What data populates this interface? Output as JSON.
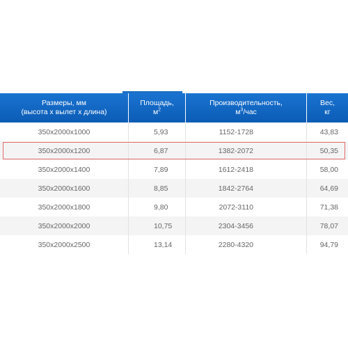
{
  "table": {
    "headers": [
      {
        "line1": "Размеры, мм",
        "line2": "(высота х вылет х длина)"
      },
      {
        "line1": "Площадь,",
        "line2": "м",
        "sup": "2"
      },
      {
        "line1": "Производительность,",
        "line2_pre": "м",
        "sup": "3",
        "line2_post": "/час"
      },
      {
        "line1": "Вес,",
        "line2": "кг"
      }
    ],
    "rows": [
      [
        "350x2000x1000",
        "5,93",
        "1152-1728",
        "43,83"
      ],
      [
        "350x2000x1200",
        "6,87",
        "1382-2072",
        "50,35"
      ],
      [
        "350x2000x1400",
        "7,89",
        "1612-2418",
        "58,00"
      ],
      [
        "350x2000x1600",
        "8,85",
        "1842-2764",
        "64,69"
      ],
      [
        "350x2000x1800",
        "9,80",
        "2072-3110",
        "71,38"
      ],
      [
        "350x2000x2000",
        "10,75",
        "2304-3456",
        "78,07"
      ],
      [
        "350x2000x2500",
        "13,14",
        "2280-4320",
        "94,79"
      ]
    ],
    "highlighted_row": 1,
    "colors": {
      "header_bg": "#0b5cb5",
      "highlight_border": "#e06a6a",
      "alt_row_bg": "#f4f4f4"
    }
  }
}
